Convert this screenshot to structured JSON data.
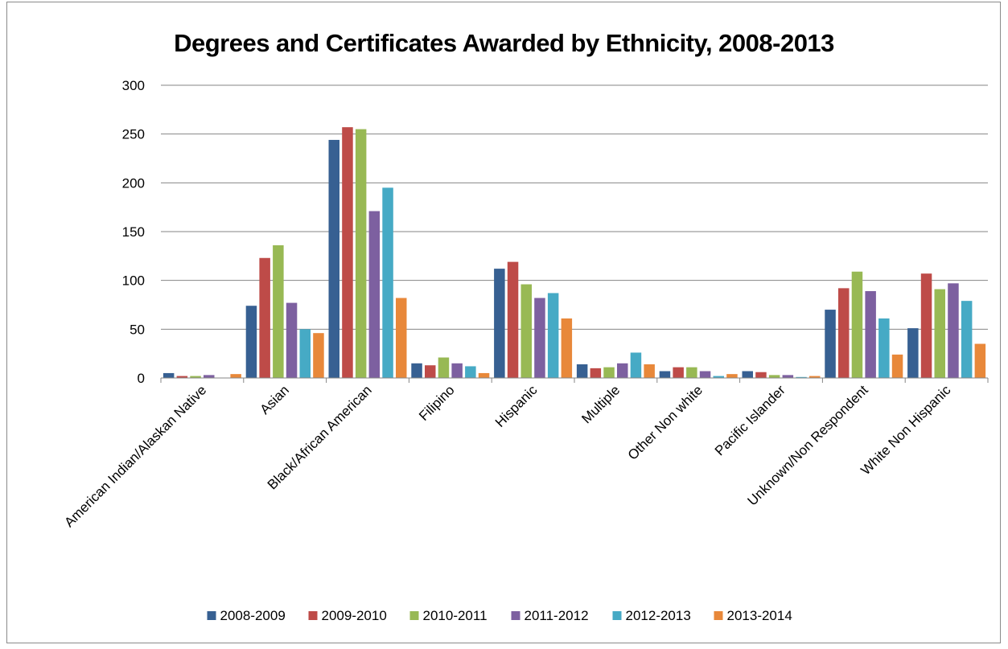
{
  "chart_data": {
    "type": "bar",
    "title": "Degrees and Certificates Awarded by Ethnicity, 2008-2013",
    "xlabel": "",
    "ylabel": "",
    "ylim": [
      0,
      300
    ],
    "yticks": [
      0,
      50,
      100,
      150,
      200,
      250,
      300
    ],
    "grid": true,
    "legend_position": "bottom",
    "categories": [
      "American Indian/Alaskan Native",
      "Asian",
      "Black/African American",
      "Filipino",
      "Hispanic",
      "Multiple",
      "Other Non white",
      "Pacific Islander",
      "Unknown/Non Respondent",
      "White Non Hispanic"
    ],
    "series": [
      {
        "name": "2008-2009",
        "color": "#376092",
        "values": [
          5,
          74,
          244,
          15,
          112,
          14,
          7,
          7,
          70,
          51
        ]
      },
      {
        "name": "2009-2010",
        "color": "#BE4B48",
        "values": [
          2,
          123,
          257,
          13,
          119,
          10,
          11,
          6,
          92,
          107
        ]
      },
      {
        "name": "2010-2011",
        "color": "#98B954",
        "values": [
          2,
          136,
          255,
          21,
          96,
          11,
          11,
          3,
          109,
          91
        ]
      },
      {
        "name": "2011-2012",
        "color": "#7D60A0",
        "values": [
          3,
          77,
          171,
          15,
          82,
          15,
          7,
          3,
          89,
          97
        ]
      },
      {
        "name": "2012-2013",
        "color": "#46AAC5",
        "values": [
          0,
          50,
          195,
          12,
          87,
          26,
          2,
          1,
          61,
          79
        ]
      },
      {
        "name": "2013-2014",
        "color": "#E8883A",
        "values": [
          4,
          46,
          82,
          5,
          61,
          14,
          4,
          2,
          24,
          35
        ]
      }
    ]
  }
}
